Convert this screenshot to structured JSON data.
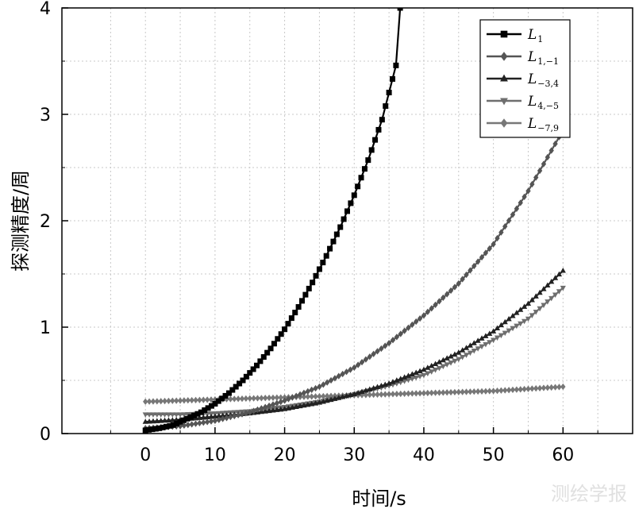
{
  "chart_data": {
    "type": "line",
    "title": "",
    "xlabel": "时间/s",
    "ylabel": "探测精度/周",
    "xlim": [
      -12,
      70
    ],
    "ylim": [
      0,
      4
    ],
    "xticks": [
      0,
      10,
      20,
      30,
      40,
      50,
      60
    ],
    "yticks": [
      0,
      1,
      2,
      3,
      4
    ],
    "grid": true,
    "legend_position": "top-right",
    "series": [
      {
        "name": "L1",
        "label": "L",
        "subscript": "1",
        "color": "#000000",
        "marker": "square",
        "x": [
          0,
          2,
          4,
          6,
          8,
          10,
          12,
          14,
          16,
          18,
          20,
          22,
          24,
          26,
          28,
          30,
          32,
          34,
          36,
          36.6
        ],
        "y": [
          0.03,
          0.05,
          0.08,
          0.14,
          0.2,
          0.28,
          0.38,
          0.5,
          0.64,
          0.8,
          0.98,
          1.19,
          1.42,
          1.67,
          1.94,
          2.24,
          2.57,
          2.95,
          3.46,
          4.0
        ]
      },
      {
        "name": "L1,-1",
        "label": "L",
        "subscript": "1,−1",
        "color": "#555555",
        "marker": "diamond",
        "x": [
          0,
          5,
          10,
          15,
          20,
          25,
          30,
          35,
          40,
          45,
          50,
          55,
          60
        ],
        "y": [
          0.05,
          0.07,
          0.12,
          0.2,
          0.31,
          0.44,
          0.62,
          0.85,
          1.11,
          1.41,
          1.78,
          2.28,
          2.85
        ]
      },
      {
        "name": "L-3,4",
        "label": "L",
        "subscript": "−3,4",
        "color": "#222222",
        "marker": "triangle-up",
        "x": [
          0,
          5,
          10,
          15,
          20,
          25,
          30,
          35,
          40,
          45,
          50,
          55,
          60
        ],
        "y": [
          0.11,
          0.13,
          0.16,
          0.19,
          0.23,
          0.29,
          0.37,
          0.47,
          0.6,
          0.76,
          0.96,
          1.22,
          1.53
        ]
      },
      {
        "name": "L4,-5",
        "label": "L",
        "subscript": "4,−5",
        "color": "#6e6e6e",
        "marker": "triangle-down",
        "x": [
          0,
          5,
          10,
          15,
          20,
          25,
          30,
          35,
          40,
          45,
          50,
          55,
          60
        ],
        "y": [
          0.18,
          0.18,
          0.19,
          0.21,
          0.25,
          0.3,
          0.37,
          0.45,
          0.55,
          0.7,
          0.88,
          1.08,
          1.37
        ]
      },
      {
        "name": "L-7,9",
        "label": "L",
        "subscript": "−7,9",
        "color": "#777777",
        "marker": "diamond",
        "x": [
          0,
          5,
          10,
          15,
          20,
          25,
          30,
          35,
          40,
          45,
          50,
          55,
          60
        ],
        "y": [
          0.3,
          0.31,
          0.32,
          0.33,
          0.34,
          0.35,
          0.36,
          0.37,
          0.38,
          0.39,
          0.4,
          0.42,
          0.44
        ]
      }
    ]
  },
  "watermark": "测绘学报"
}
